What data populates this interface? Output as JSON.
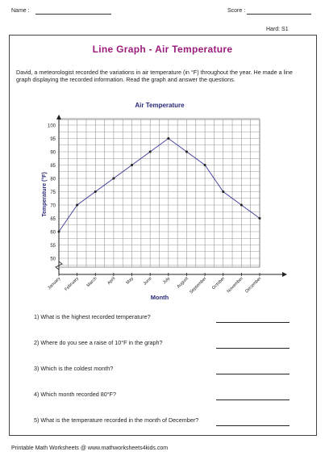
{
  "header": {
    "name_label": "Name :",
    "score_label": "Score :",
    "level": "Hard: S1"
  },
  "worksheet": {
    "title": "Line Graph - Air Temperature",
    "intro": "David, a meteorologist recorded the variations in air temperature (in °F) throughout the year. He made a line graph displaying the recorded information. Read the graph and answer the questions."
  },
  "chart_data": {
    "type": "line",
    "title": "Air Temperature",
    "xlabel": "Month",
    "ylabel": "Temperature (°F)",
    "categories": [
      "January",
      "February",
      "March",
      "April",
      "May",
      "June",
      "July",
      "August",
      "September",
      "October",
      "November",
      "December"
    ],
    "values": [
      60,
      70,
      75,
      80,
      85,
      90,
      95,
      90,
      85,
      75,
      70,
      65
    ],
    "y_ticks": [
      "50",
      "55",
      "60",
      "65",
      "70",
      "75",
      "80",
      "85",
      "90",
      "95",
      "100"
    ],
    "ylim": [
      50,
      100
    ],
    "grid": true
  },
  "questions": [
    {
      "text": "1)  What is the highest recorded temperature?"
    },
    {
      "text": "2)  Where do you see a raise of 10°F in the graph?"
    },
    {
      "text": "3)  Which is the coldest month?"
    },
    {
      "text": "4)  Which month recorded 80°F?"
    },
    {
      "text": "5)  What is the temperature recorded in the month of December?"
    }
  ],
  "footer": {
    "text": "Printable Math Worksheets @ www.mathworksheets4kids.com"
  }
}
